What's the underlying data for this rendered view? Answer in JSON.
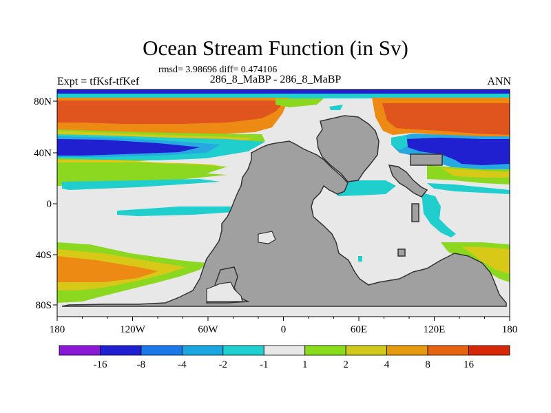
{
  "title": "Ocean Stream Function (in Sv)",
  "stats": "rmsd= 3.98696  diff= 0.474106",
  "left_label": "Expt = tfKsf-tfKef",
  "center_label": "286_8_MaBP - 286_8_MaBP",
  "right_label": "ANN",
  "axes": {
    "x_ticks": [
      "180",
      "120W",
      "60W",
      "0",
      "60E",
      "120E",
      "180"
    ],
    "y_ticks": [
      "80N",
      "40N",
      "0",
      "40S",
      "80S"
    ]
  },
  "colorbar": {
    "labels": [
      "-16",
      "-8",
      "-4",
      "-2",
      "-1",
      "1",
      "2",
      "4",
      "8",
      "16"
    ],
    "colors": [
      "#8a18d6",
      "#2020d2",
      "#1a78e8",
      "#1aa6e0",
      "#20d0d0",
      "#e8e8e8",
      "#88dc1c",
      "#d0c81a",
      "#e69a10",
      "#e46410",
      "#d62808"
    ]
  },
  "palette": {
    "land": "#a0a0a0",
    "neutral": "#e8e8e8",
    "red": "#e0541e",
    "orange": "#ec8a14",
    "yellow": "#d8c818",
    "green": "#8cd820",
    "cyan": "#20cece",
    "lightblue": "#28a8e0",
    "blue": "#2020d0"
  }
}
